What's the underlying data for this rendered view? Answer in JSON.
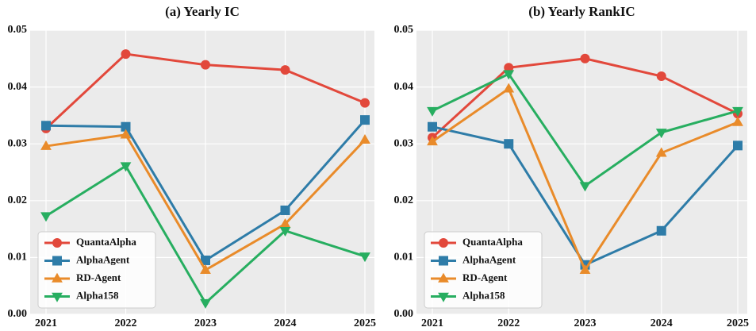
{
  "chart_data": [
    {
      "type": "line",
      "title": "(a) Yearly IC",
      "categories": [
        "2021",
        "2022",
        "2023",
        "2024",
        "2025"
      ],
      "ylim": [
        0,
        0.05
      ],
      "yticks": [
        {
          "value": 0,
          "label": "0.00"
        },
        0.01,
        0.02,
        0.03,
        0.04,
        0.05
      ],
      "grid": true,
      "legend": "lower left",
      "series": [
        {
          "name": "QuantaAlpha",
          "color": "#e2483b",
          "marker": "circle",
          "values": [
            0.0327,
            0.0458,
            0.0439,
            0.043,
            0.0372
          ]
        },
        {
          "name": "AlphaAgent",
          "color": "#2e7ca8",
          "marker": "square",
          "values": [
            0.0332,
            0.033,
            0.0095,
            0.0183,
            0.0342
          ]
        },
        {
          "name": "RD-Agent",
          "color": "#e98b2a",
          "marker": "triangle-up",
          "values": [
            0.0296,
            0.0316,
            0.0078,
            0.0159,
            0.0307
          ]
        },
        {
          "name": "Alpha158",
          "color": "#27ae60",
          "marker": "triangle-down",
          "values": [
            0.0173,
            0.0261,
            0.002,
            0.0147,
            0.0102
          ]
        }
      ]
    },
    {
      "type": "line",
      "title": "(b) Yearly RankIC",
      "categories": [
        "2021",
        "2022",
        "2023",
        "2024",
        "2025"
      ],
      "ylim": [
        0,
        0.05
      ],
      "yticks": [
        {
          "value": 0,
          "label": "0.00"
        },
        0.01,
        0.02,
        0.03,
        0.04,
        0.05
      ],
      "grid": true,
      "legend": "lower left",
      "series": [
        {
          "name": "QuantaAlpha",
          "color": "#e2483b",
          "marker": "circle",
          "values": [
            0.0311,
            0.0434,
            0.045,
            0.0419,
            0.0353
          ]
        },
        {
          "name": "AlphaAgent",
          "color": "#2e7ca8",
          "marker": "square",
          "values": [
            0.033,
            0.03,
            0.0087,
            0.0147,
            0.0297
          ]
        },
        {
          "name": "RD-Agent",
          "color": "#e98b2a",
          "marker": "triangle-up",
          "values": [
            0.0304,
            0.0397,
            0.0078,
            0.0284,
            0.0338
          ]
        },
        {
          "name": "Alpha158",
          "color": "#27ae60",
          "marker": "triangle-down",
          "values": [
            0.0358,
            0.0423,
            0.0226,
            0.032,
            0.0358
          ]
        }
      ]
    }
  ]
}
